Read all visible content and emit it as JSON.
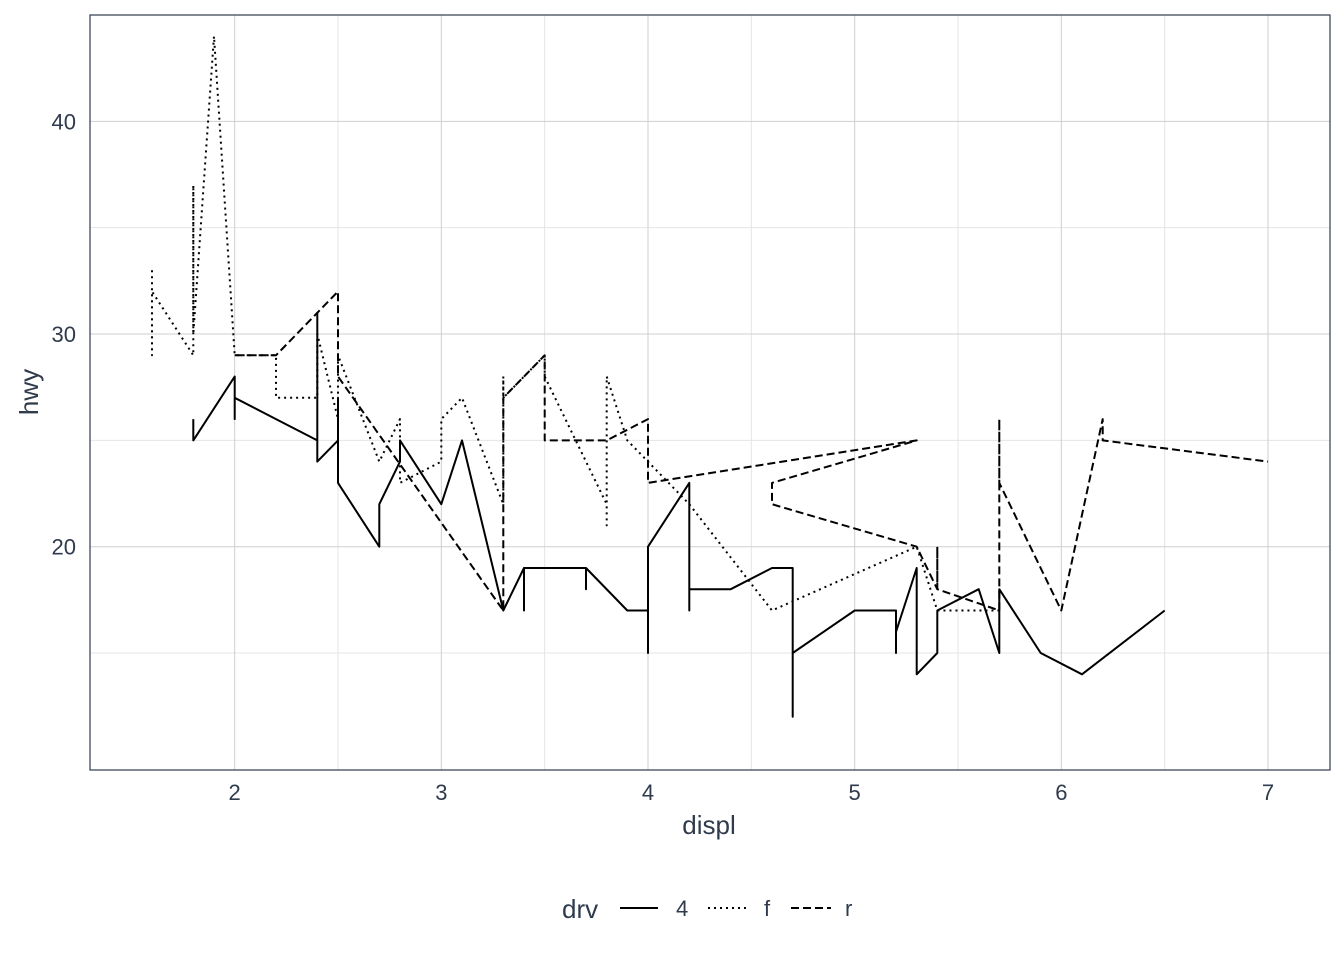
{
  "chart_data": {
    "type": "line",
    "title": "",
    "xlabel": "displ",
    "ylabel": "hwy",
    "xlim": [
      1.3,
      7.3
    ],
    "ylim": [
      9.5,
      45.0
    ],
    "x_ticks": [
      2,
      3,
      4,
      5,
      6,
      7
    ],
    "x_tick_labels": [
      "2",
      "3",
      "4",
      "5",
      "6",
      "7"
    ],
    "y_ticks": [
      20,
      30,
      40
    ],
    "y_tick_labels": [
      "20",
      "30",
      "40"
    ],
    "y_minor_ticks": [
      15,
      25,
      35,
      45
    ],
    "x_minor_ticks": [
      2.5,
      3.5,
      4.5,
      5.5,
      6.5
    ],
    "grid": true,
    "legend": {
      "title": "drv",
      "position": "bottom",
      "entries": [
        {
          "label": "4",
          "linetype": "solid"
        },
        {
          "label": "f",
          "linetype": "dotted"
        },
        {
          "label": "r",
          "linetype": "dashed"
        }
      ]
    },
    "series": [
      {
        "name": "4",
        "linetype": "solid",
        "points": [
          [
            1.8,
            26
          ],
          [
            1.8,
            25
          ],
          [
            2.0,
            28
          ],
          [
            2.0,
            26
          ],
          [
            2.0,
            27
          ],
          [
            2.2,
            26
          ],
          [
            2.4,
            25
          ],
          [
            2.4,
            31
          ],
          [
            2.4,
            24
          ],
          [
            2.5,
            25
          ],
          [
            2.5,
            27
          ],
          [
            2.5,
            23
          ],
          [
            2.7,
            20
          ],
          [
            2.7,
            22
          ],
          [
            2.8,
            24
          ],
          [
            2.8,
            25
          ],
          [
            3.0,
            22
          ],
          [
            3.1,
            25
          ],
          [
            3.3,
            17
          ],
          [
            3.4,
            19
          ],
          [
            3.4,
            17
          ],
          [
            3.4,
            19
          ],
          [
            3.7,
            19
          ],
          [
            3.7,
            18
          ],
          [
            3.7,
            19
          ],
          [
            3.9,
            17
          ],
          [
            4.0,
            17
          ],
          [
            4.0,
            15
          ],
          [
            4.0,
            20
          ],
          [
            4.2,
            23
          ],
          [
            4.2,
            17
          ],
          [
            4.2,
            18
          ],
          [
            4.4,
            18
          ],
          [
            4.6,
            19
          ],
          [
            4.7,
            19
          ],
          [
            4.7,
            12
          ],
          [
            4.7,
            15
          ],
          [
            5.0,
            17
          ],
          [
            5.2,
            17
          ],
          [
            5.2,
            15
          ],
          [
            5.2,
            16
          ],
          [
            5.3,
            19
          ],
          [
            5.3,
            14
          ],
          [
            5.4,
            15
          ],
          [
            5.4,
            17
          ],
          [
            5.6,
            18
          ],
          [
            5.7,
            15
          ],
          [
            5.7,
            18
          ],
          [
            5.9,
            15
          ],
          [
            6.1,
            14
          ],
          [
            6.5,
            17
          ]
        ]
      },
      {
        "name": "f",
        "linetype": "dotted",
        "points": [
          [
            1.6,
            33
          ],
          [
            1.6,
            29
          ],
          [
            1.6,
            32
          ],
          [
            1.8,
            29
          ],
          [
            1.8,
            37
          ],
          [
            1.8,
            30
          ],
          [
            1.9,
            44
          ],
          [
            2.0,
            29
          ],
          [
            2.2,
            29
          ],
          [
            2.2,
            27
          ],
          [
            2.4,
            27
          ],
          [
            2.4,
            30
          ],
          [
            2.5,
            26
          ],
          [
            2.5,
            29
          ],
          [
            2.7,
            24
          ],
          [
            2.8,
            26
          ],
          [
            2.8,
            23
          ],
          [
            3.0,
            24
          ],
          [
            3.0,
            26
          ],
          [
            3.1,
            27
          ],
          [
            3.3,
            22
          ],
          [
            3.3,
            28
          ],
          [
            3.3,
            27
          ],
          [
            3.5,
            29
          ],
          [
            3.5,
            28
          ],
          [
            3.8,
            22
          ],
          [
            3.8,
            21
          ],
          [
            3.8,
            28
          ],
          [
            3.9,
            25
          ],
          [
            4.0,
            24
          ],
          [
            4.2,
            22
          ],
          [
            4.6,
            17
          ],
          [
            5.3,
            20
          ],
          [
            5.4,
            17
          ],
          [
            5.7,
            17
          ]
        ]
      },
      {
        "name": "r",
        "linetype": "dashed",
        "points": [
          [
            2.0,
            29
          ],
          [
            2.2,
            29
          ],
          [
            2.5,
            32
          ],
          [
            2.5,
            28
          ],
          [
            3.3,
            17
          ],
          [
            3.3,
            27
          ],
          [
            3.5,
            29
          ],
          [
            3.5,
            25
          ],
          [
            3.8,
            25
          ],
          [
            4.0,
            26
          ],
          [
            4.0,
            23
          ],
          [
            5.3,
            25
          ],
          [
            4.6,
            23
          ],
          [
            4.6,
            22
          ],
          [
            5.3,
            20
          ],
          [
            5.4,
            18
          ],
          [
            5.4,
            20
          ],
          [
            5.4,
            18
          ],
          [
            5.7,
            17
          ],
          [
            5.7,
            26
          ],
          [
            5.7,
            23
          ],
          [
            6.0,
            17
          ],
          [
            6.2,
            26
          ],
          [
            6.2,
            25
          ],
          [
            7.0,
            24
          ]
        ]
      }
    ]
  }
}
